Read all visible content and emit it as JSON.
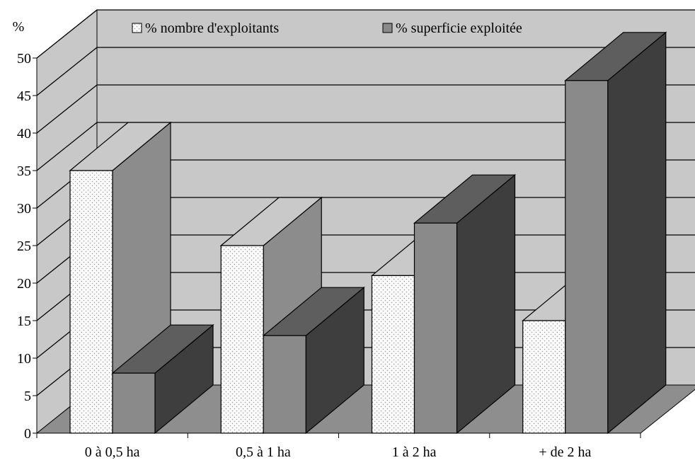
{
  "chart_data": {
    "type": "bar",
    "variant": "3d-clustered",
    "y_unit_label": "%",
    "categories": [
      "0 à 0,5 ha",
      "0,5 à 1 ha",
      "1 à 2 ha",
      "+ de 2 ha"
    ],
    "series": [
      {
        "name": "% nombre d'exploitants",
        "values": [
          35,
          25,
          21,
          15
        ],
        "pattern": "dotted",
        "front_color": "#fbfbfb",
        "top_color": "#c9c9c9",
        "side_color": "#8c8c8c"
      },
      {
        "name": "% superficie exploitée",
        "values": [
          8,
          13,
          28,
          47
        ],
        "pattern": "solid",
        "front_color": "#8a8a8a",
        "top_color": "#5e5e5e",
        "side_color": "#3e3e3e"
      }
    ],
    "ylim": [
      0,
      50
    ],
    "y_ticks": [
      0,
      5,
      10,
      15,
      20,
      25,
      30,
      35,
      40,
      45,
      50
    ],
    "grid": true,
    "legend_position": "top-center",
    "colors": {
      "wall": "#c8c8c8",
      "floor": "#8e8e8e",
      "gridline": "#000000"
    }
  }
}
